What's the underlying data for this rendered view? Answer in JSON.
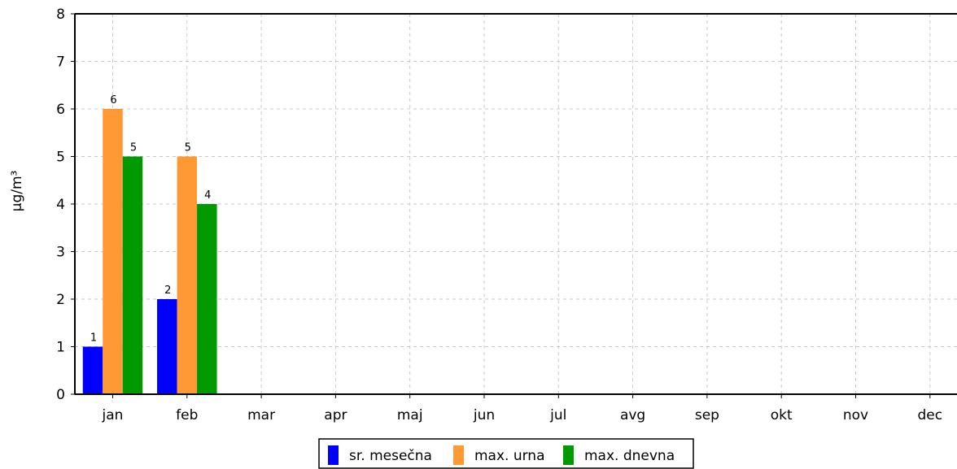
{
  "chart_data": {
    "type": "bar",
    "categories": [
      "jan",
      "feb",
      "mar",
      "apr",
      "maj",
      "jun",
      "jul",
      "avg",
      "sep",
      "okt",
      "nov",
      "dec"
    ],
    "series": [
      {
        "name": "sr. mesečna",
        "color": "#0000ff",
        "values": [
          1,
          2,
          null,
          null,
          null,
          null,
          null,
          null,
          null,
          null,
          null,
          null
        ]
      },
      {
        "name": "max. urna",
        "color": "#ff9933",
        "values": [
          6,
          5,
          null,
          null,
          null,
          null,
          null,
          null,
          null,
          null,
          null,
          null
        ]
      },
      {
        "name": "max. dnevna",
        "color": "#009900",
        "values": [
          5,
          4,
          null,
          null,
          null,
          null,
          null,
          null,
          null,
          null,
          null,
          null
        ]
      }
    ],
    "title": "",
    "xlabel": "",
    "ylabel": "µg/m³",
    "ylim": [
      0,
      8
    ],
    "yticks": [
      "0",
      "1",
      "2",
      "3",
      "4",
      "5",
      "6",
      "7",
      "8"
    ],
    "grid": true,
    "legend_position": "bottom-center"
  }
}
